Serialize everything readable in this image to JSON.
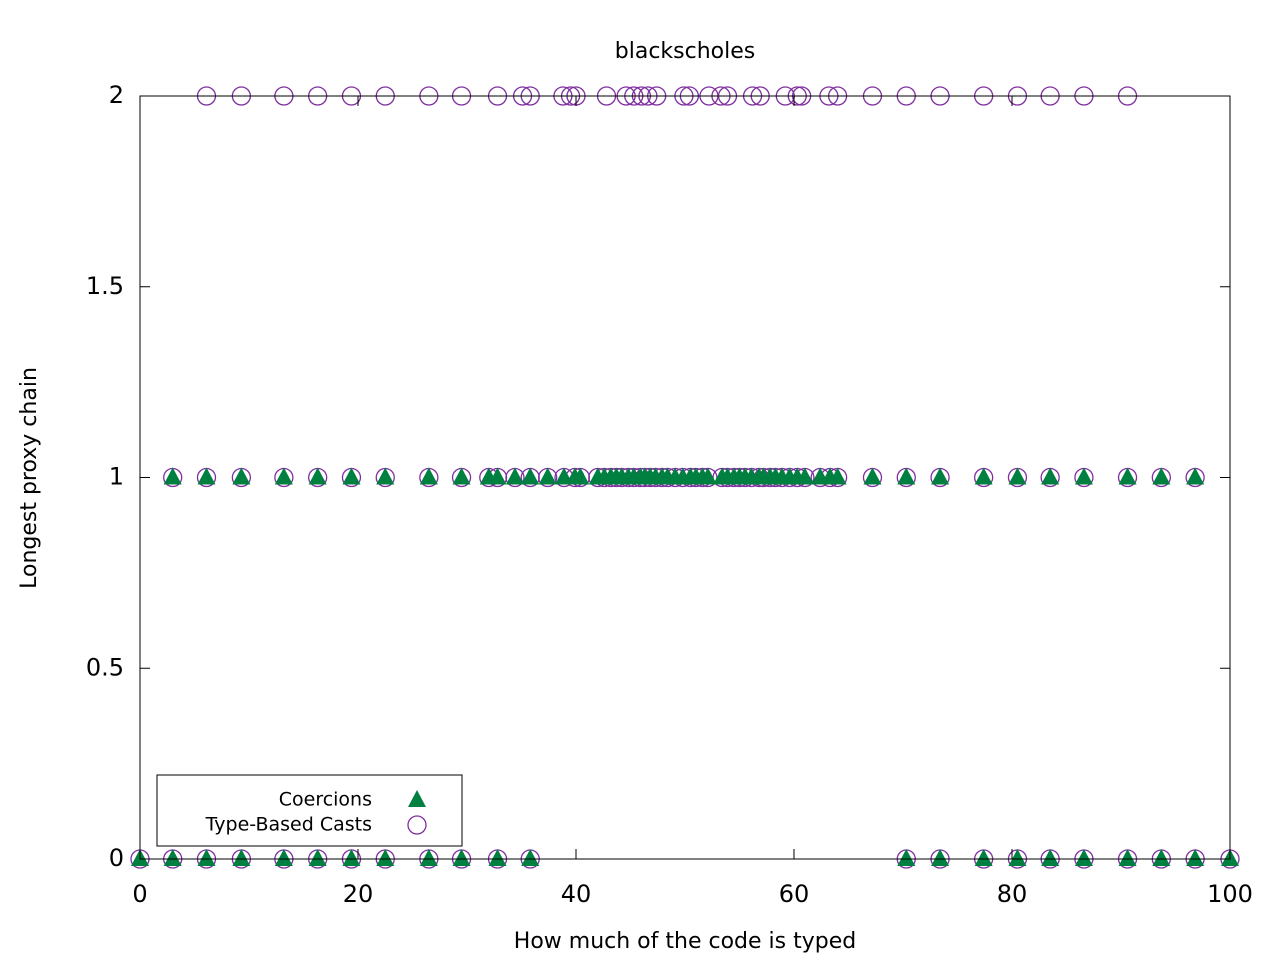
{
  "chart_data": {
    "type": "scatter",
    "title": "blackscholes",
    "xlabel": "How much of the code is typed",
    "ylabel": "Longest proxy chain",
    "xlim": [
      0,
      100
    ],
    "ylim": [
      0,
      2
    ],
    "xticks": [
      0,
      20,
      40,
      60,
      80,
      100
    ],
    "yticks": [
      0,
      0.5,
      1,
      1.5,
      2
    ],
    "legend": "bottom-left",
    "series": [
      {
        "name": "Coercions",
        "color": "#008040",
        "marker": "triangle",
        "filled": true,
        "x": [
          0,
          3.0,
          6.1,
          9.3,
          13.2,
          16.3,
          19.4,
          22.5,
          26.5,
          29.5,
          32.8,
          35.8,
          70.3,
          73.4,
          77.4,
          80.5,
          83.5,
          86.6,
          90.6,
          93.7,
          96.8,
          100,
          3.0,
          6.1,
          9.3,
          13.2,
          16.3,
          19.4,
          22.5,
          26.5,
          29.5,
          32.0,
          32.8,
          34.4,
          35.8,
          37.4,
          38.9,
          39.9,
          40.4,
          42.0,
          42.6,
          43.2,
          43.7,
          44.2,
          44.8,
          45.3,
          45.9,
          46.3,
          46.8,
          47.3,
          47.9,
          48.4,
          49.1,
          49.8,
          50.5,
          51.0,
          51.6,
          52.1,
          53.4,
          53.9,
          54.5,
          55.0,
          55.5,
          56.1,
          56.8,
          57.2,
          57.8,
          58.3,
          58.9,
          59.6,
          60.3,
          61.0,
          62.4,
          63.3,
          64.0,
          67.2,
          70.3,
          73.4,
          77.4,
          80.5,
          83.5,
          86.6,
          90.6,
          93.7,
          96.8
        ],
        "values": [
          0,
          0,
          0,
          0,
          0,
          0,
          0,
          0,
          0,
          0,
          0,
          0,
          0,
          0,
          0,
          0,
          0,
          0,
          0,
          0,
          0,
          0,
          1,
          1,
          1,
          1,
          1,
          1,
          1,
          1,
          1,
          1,
          1,
          1,
          1,
          1,
          1,
          1,
          1,
          1,
          1,
          1,
          1,
          1,
          1,
          1,
          1,
          1,
          1,
          1,
          1,
          1,
          1,
          1,
          1,
          1,
          1,
          1,
          1,
          1,
          1,
          1,
          1,
          1,
          1,
          1,
          1,
          1,
          1,
          1,
          1,
          1,
          1,
          1,
          1,
          1,
          1,
          1,
          1,
          1,
          1,
          1,
          1,
          1,
          1
        ]
      },
      {
        "name": "Type-Based Casts",
        "color": "#7f2f9f",
        "marker": "circle",
        "filled": false,
        "x": [
          0,
          3.0,
          6.1,
          9.3,
          13.2,
          16.3,
          19.4,
          22.5,
          26.5,
          29.5,
          32.8,
          35.8,
          70.3,
          73.4,
          77.4,
          80.5,
          83.5,
          86.6,
          90.6,
          93.7,
          96.8,
          100,
          3.0,
          6.1,
          9.3,
          13.2,
          16.3,
          19.4,
          22.5,
          26.5,
          29.5,
          32.0,
          32.8,
          34.4,
          35.8,
          37.4,
          38.9,
          39.9,
          40.4,
          42.0,
          42.6,
          43.2,
          43.7,
          44.2,
          44.8,
          45.3,
          45.9,
          46.3,
          46.8,
          47.3,
          47.9,
          48.4,
          49.1,
          49.8,
          50.5,
          51.0,
          51.6,
          52.1,
          53.4,
          53.9,
          54.5,
          55.0,
          55.5,
          56.1,
          56.8,
          57.2,
          57.8,
          58.3,
          58.9,
          59.6,
          60.3,
          61.0,
          62.4,
          63.3,
          64.0,
          67.2,
          70.3,
          73.4,
          77.4,
          80.5,
          83.5,
          86.6,
          90.6,
          93.7,
          96.8,
          6.1,
          9.3,
          13.2,
          16.3,
          19.4,
          22.5,
          26.5,
          29.5,
          32.8,
          35.1,
          35.8,
          38.8,
          39.5,
          40.0,
          42.8,
          44.6,
          45.3,
          46.0,
          46.6,
          47.4,
          49.9,
          50.4,
          52.2,
          53.3,
          53.9,
          56.2,
          56.9,
          59.2,
          60.3,
          60.7,
          63.2,
          64.0,
          67.2,
          70.3,
          73.4,
          77.4,
          80.5,
          83.5,
          86.6,
          90.6
        ],
        "values": [
          0,
          0,
          0,
          0,
          0,
          0,
          0,
          0,
          0,
          0,
          0,
          0,
          0,
          0,
          0,
          0,
          0,
          0,
          0,
          0,
          0,
          0,
          1,
          1,
          1,
          1,
          1,
          1,
          1,
          1,
          1,
          1,
          1,
          1,
          1,
          1,
          1,
          1,
          1,
          1,
          1,
          1,
          1,
          1,
          1,
          1,
          1,
          1,
          1,
          1,
          1,
          1,
          1,
          1,
          1,
          1,
          1,
          1,
          1,
          1,
          1,
          1,
          1,
          1,
          1,
          1,
          1,
          1,
          1,
          1,
          1,
          1,
          1,
          1,
          1,
          1,
          1,
          1,
          1,
          1,
          1,
          1,
          1,
          1,
          1,
          2,
          2,
          2,
          2,
          2,
          2,
          2,
          2,
          2,
          2,
          2,
          2,
          2,
          2,
          2,
          2,
          2,
          2,
          2,
          2,
          2,
          2,
          2,
          2,
          2,
          2,
          2,
          2,
          2,
          2,
          2,
          2,
          2,
          2,
          2,
          2,
          2,
          2,
          2,
          2
        ]
      }
    ]
  }
}
